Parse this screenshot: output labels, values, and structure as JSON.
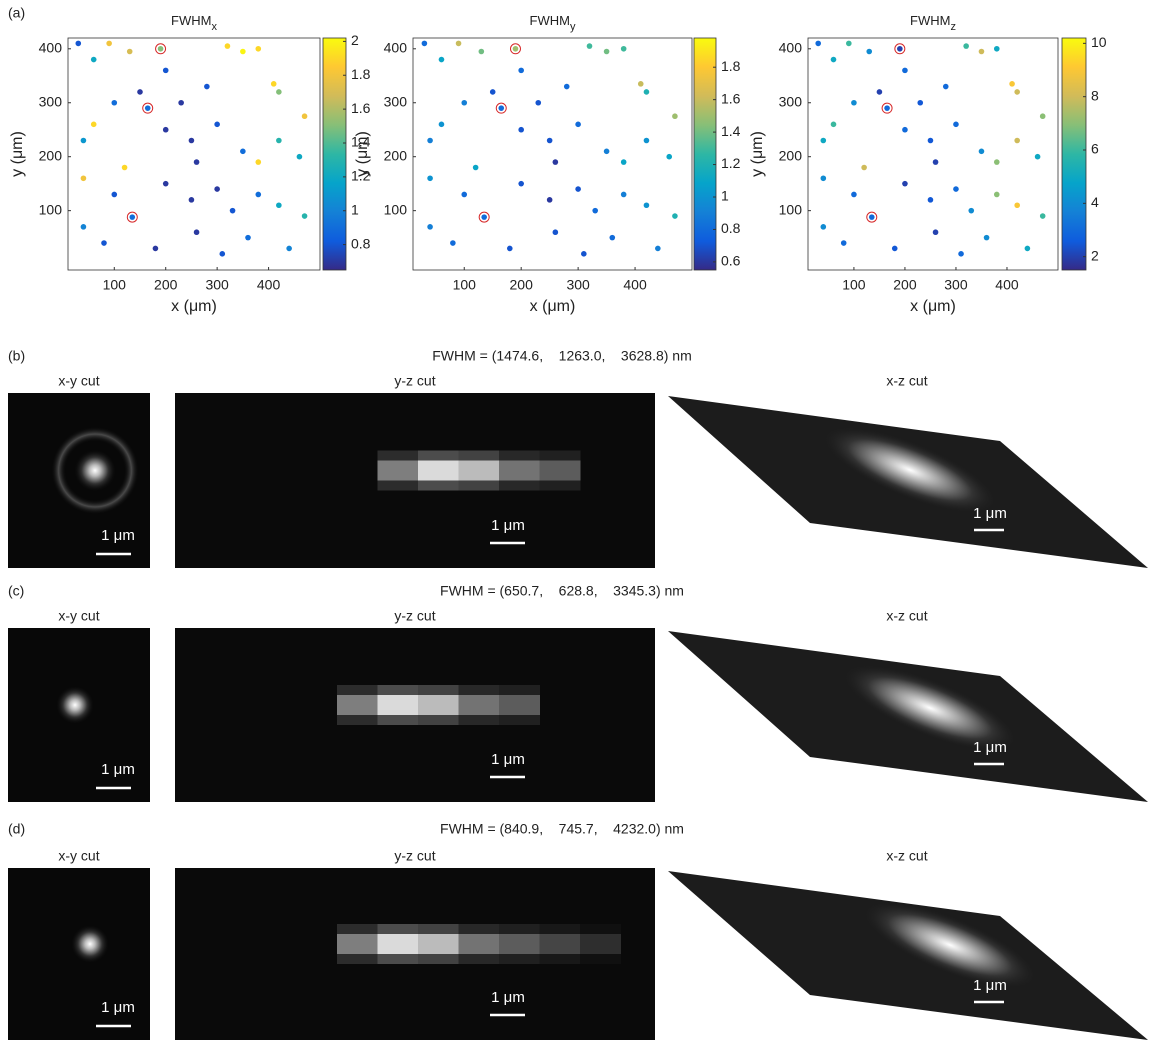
{
  "panel_a_label": "(a)",
  "chart_data": [
    {
      "type": "scatter",
      "title": {
        "text": "FWHM",
        "subscript": "x"
      },
      "x_label": "x (μm)",
      "y_label": "y (μm)",
      "xlim": [
        10,
        500
      ],
      "ylim": [
        -10,
        420
      ],
      "xticks": [
        100,
        200,
        300,
        400
      ],
      "yticks": [
        100,
        200,
        300,
        400
      ],
      "x": [
        30,
        60,
        90,
        130,
        190,
        320,
        350,
        380,
        410,
        420,
        470,
        60,
        40,
        165,
        150,
        200,
        250,
        300,
        350,
        380,
        420,
        460,
        120,
        40,
        100,
        135,
        200,
        250,
        300,
        330,
        380,
        420,
        470,
        40,
        80,
        180,
        260,
        310,
        360,
        440,
        230,
        280,
        100,
        200,
        260
      ],
      "y": [
        410,
        380,
        410,
        395,
        400,
        405,
        395,
        400,
        335,
        320,
        275,
        260,
        230,
        290,
        320,
        250,
        230,
        260,
        210,
        190,
        230,
        200,
        180,
        160,
        130,
        88,
        150,
        120,
        140,
        100,
        130,
        110,
        90,
        70,
        40,
        30,
        60,
        20,
        50,
        30,
        300,
        330,
        300,
        360,
        190
      ],
      "color_values": [
        0.8,
        1.2,
        1.8,
        1.7,
        1.5,
        1.9,
        2.0,
        1.9,
        1.9,
        1.5,
        1.8,
        1.9,
        1.1,
        0.9,
        0.7,
        0.7,
        0.7,
        0.8,
        0.9,
        1.9,
        1.3,
        1.2,
        1.9,
        1.8,
        0.8,
        0.9,
        0.7,
        0.7,
        0.7,
        0.8,
        0.9,
        1.2,
        1.3,
        1.0,
        0.8,
        0.7,
        0.7,
        0.8,
        0.9,
        1.0,
        0.7,
        0.8,
        0.9,
        0.8,
        0.7
      ],
      "colormap": "parula",
      "clim": [
        0.65,
        2.02
      ],
      "cticks": [
        0.8,
        1,
        1.2,
        1.4,
        1.6,
        1.8,
        2
      ],
      "highlight": {
        "x": [
          165,
          135,
          190
        ],
        "y": [
          290,
          88,
          400
        ],
        "color": "#d62728"
      }
    },
    {
      "type": "scatter",
      "title": {
        "text": "FWHM",
        "subscript": "y"
      },
      "x_label": "x (μm)",
      "y_label": "y (μm)",
      "xlim": [
        10,
        500
      ],
      "ylim": [
        -10,
        420
      ],
      "xticks": [
        100,
        200,
        300,
        400
      ],
      "yticks": [
        100,
        200,
        300,
        400
      ],
      "x": [
        30,
        60,
        90,
        130,
        190,
        320,
        350,
        380,
        410,
        420,
        470,
        60,
        40,
        165,
        150,
        200,
        250,
        300,
        350,
        380,
        420,
        460,
        120,
        40,
        100,
        135,
        200,
        250,
        300,
        330,
        380,
        420,
        470,
        40,
        80,
        180,
        260,
        310,
        360,
        440,
        230,
        280,
        100,
        200,
        260
      ],
      "y": [
        410,
        380,
        410,
        395,
        400,
        405,
        395,
        400,
        335,
        320,
        275,
        260,
        230,
        290,
        320,
        250,
        230,
        260,
        210,
        190,
        230,
        200,
        180,
        160,
        130,
        88,
        150,
        120,
        140,
        100,
        130,
        110,
        90,
        70,
        40,
        30,
        60,
        20,
        50,
        30,
        300,
        330,
        300,
        360,
        190
      ],
      "color_values": [
        0.8,
        1.1,
        1.6,
        1.4,
        1.5,
        1.3,
        1.4,
        1.3,
        1.6,
        1.2,
        1.5,
        1.0,
        0.9,
        0.8,
        0.7,
        0.7,
        0.7,
        0.8,
        0.9,
        1.1,
        1.0,
        1.1,
        1.1,
        1.0,
        0.8,
        0.8,
        0.7,
        0.6,
        0.7,
        0.8,
        0.9,
        1.0,
        1.2,
        0.9,
        0.8,
        0.7,
        0.7,
        0.7,
        0.8,
        0.9,
        0.7,
        0.8,
        0.9,
        0.8,
        0.6
      ],
      "colormap": "parula",
      "clim": [
        0.55,
        1.98
      ],
      "cticks": [
        0.6,
        0.8,
        1,
        1.2,
        1.4,
        1.6,
        1.8
      ],
      "highlight": {
        "x": [
          165,
          135,
          190
        ],
        "y": [
          290,
          88,
          400
        ],
        "color": "#d62728"
      }
    },
    {
      "type": "scatter",
      "title": {
        "text": "FWHM",
        "subscript": "z"
      },
      "x_label": "x (μm)",
      "y_label": "y (μm)",
      "xlim": [
        10,
        500
      ],
      "ylim": [
        -10,
        420
      ],
      "xticks": [
        100,
        200,
        300,
        400
      ],
      "yticks": [
        100,
        200,
        300,
        400
      ],
      "x": [
        30,
        60,
        90,
        130,
        190,
        320,
        350,
        380,
        410,
        420,
        470,
        60,
        40,
        165,
        150,
        200,
        250,
        300,
        350,
        380,
        420,
        460,
        120,
        40,
        100,
        135,
        200,
        250,
        300,
        330,
        380,
        420,
        470,
        40,
        80,
        180,
        260,
        310,
        360,
        440,
        230,
        280,
        100,
        200,
        260
      ],
      "y": [
        410,
        380,
        410,
        395,
        400,
        405,
        395,
        400,
        335,
        320,
        275,
        260,
        230,
        290,
        320,
        250,
        230,
        260,
        210,
        190,
        230,
        200,
        180,
        160,
        130,
        88,
        150,
        120,
        140,
        100,
        130,
        110,
        90,
        70,
        40,
        30,
        60,
        20,
        50,
        30,
        300,
        330,
        300,
        360,
        190
      ],
      "color_values": [
        3,
        5,
        6,
        4,
        2,
        6,
        8,
        5,
        9,
        8,
        7,
        6,
        5,
        3,
        2,
        3,
        2.5,
        3,
        4,
        7,
        8,
        5,
        8,
        4,
        3,
        3,
        2,
        2.5,
        3,
        4,
        7,
        9,
        6,
        4,
        3,
        2.5,
        2,
        3,
        4,
        5,
        2.5,
        3,
        4,
        3,
        2
      ],
      "colormap": "parula",
      "clim": [
        1.5,
        10.2
      ],
      "cticks": [
        2,
        4,
        6,
        8,
        10
      ],
      "highlight": {
        "x": [
          165,
          135,
          190
        ],
        "y": [
          290,
          88,
          400
        ],
        "color": "#d62728"
      }
    }
  ],
  "panels": [
    {
      "label": "(b)",
      "fwhm": "FWHM = (1474.6,    1263.0,    3628.8) nm",
      "cuts": [
        "x-y cut",
        "y-z cut",
        "x-z cut"
      ],
      "scale_bar": "1 μm"
    },
    {
      "label": "(c)",
      "fwhm": "FWHM = (650.7,    628.8,    3345.3) nm",
      "cuts": [
        "x-y cut",
        "y-z cut",
        "x-z cut"
      ],
      "scale_bar": "1 μm"
    },
    {
      "label": "(d)",
      "fwhm": "FWHM = (840.9,    745.7,    4232.0) nm",
      "cuts": [
        "x-y cut",
        "y-z cut",
        "x-z cut"
      ],
      "scale_bar": "1 μm"
    }
  ]
}
